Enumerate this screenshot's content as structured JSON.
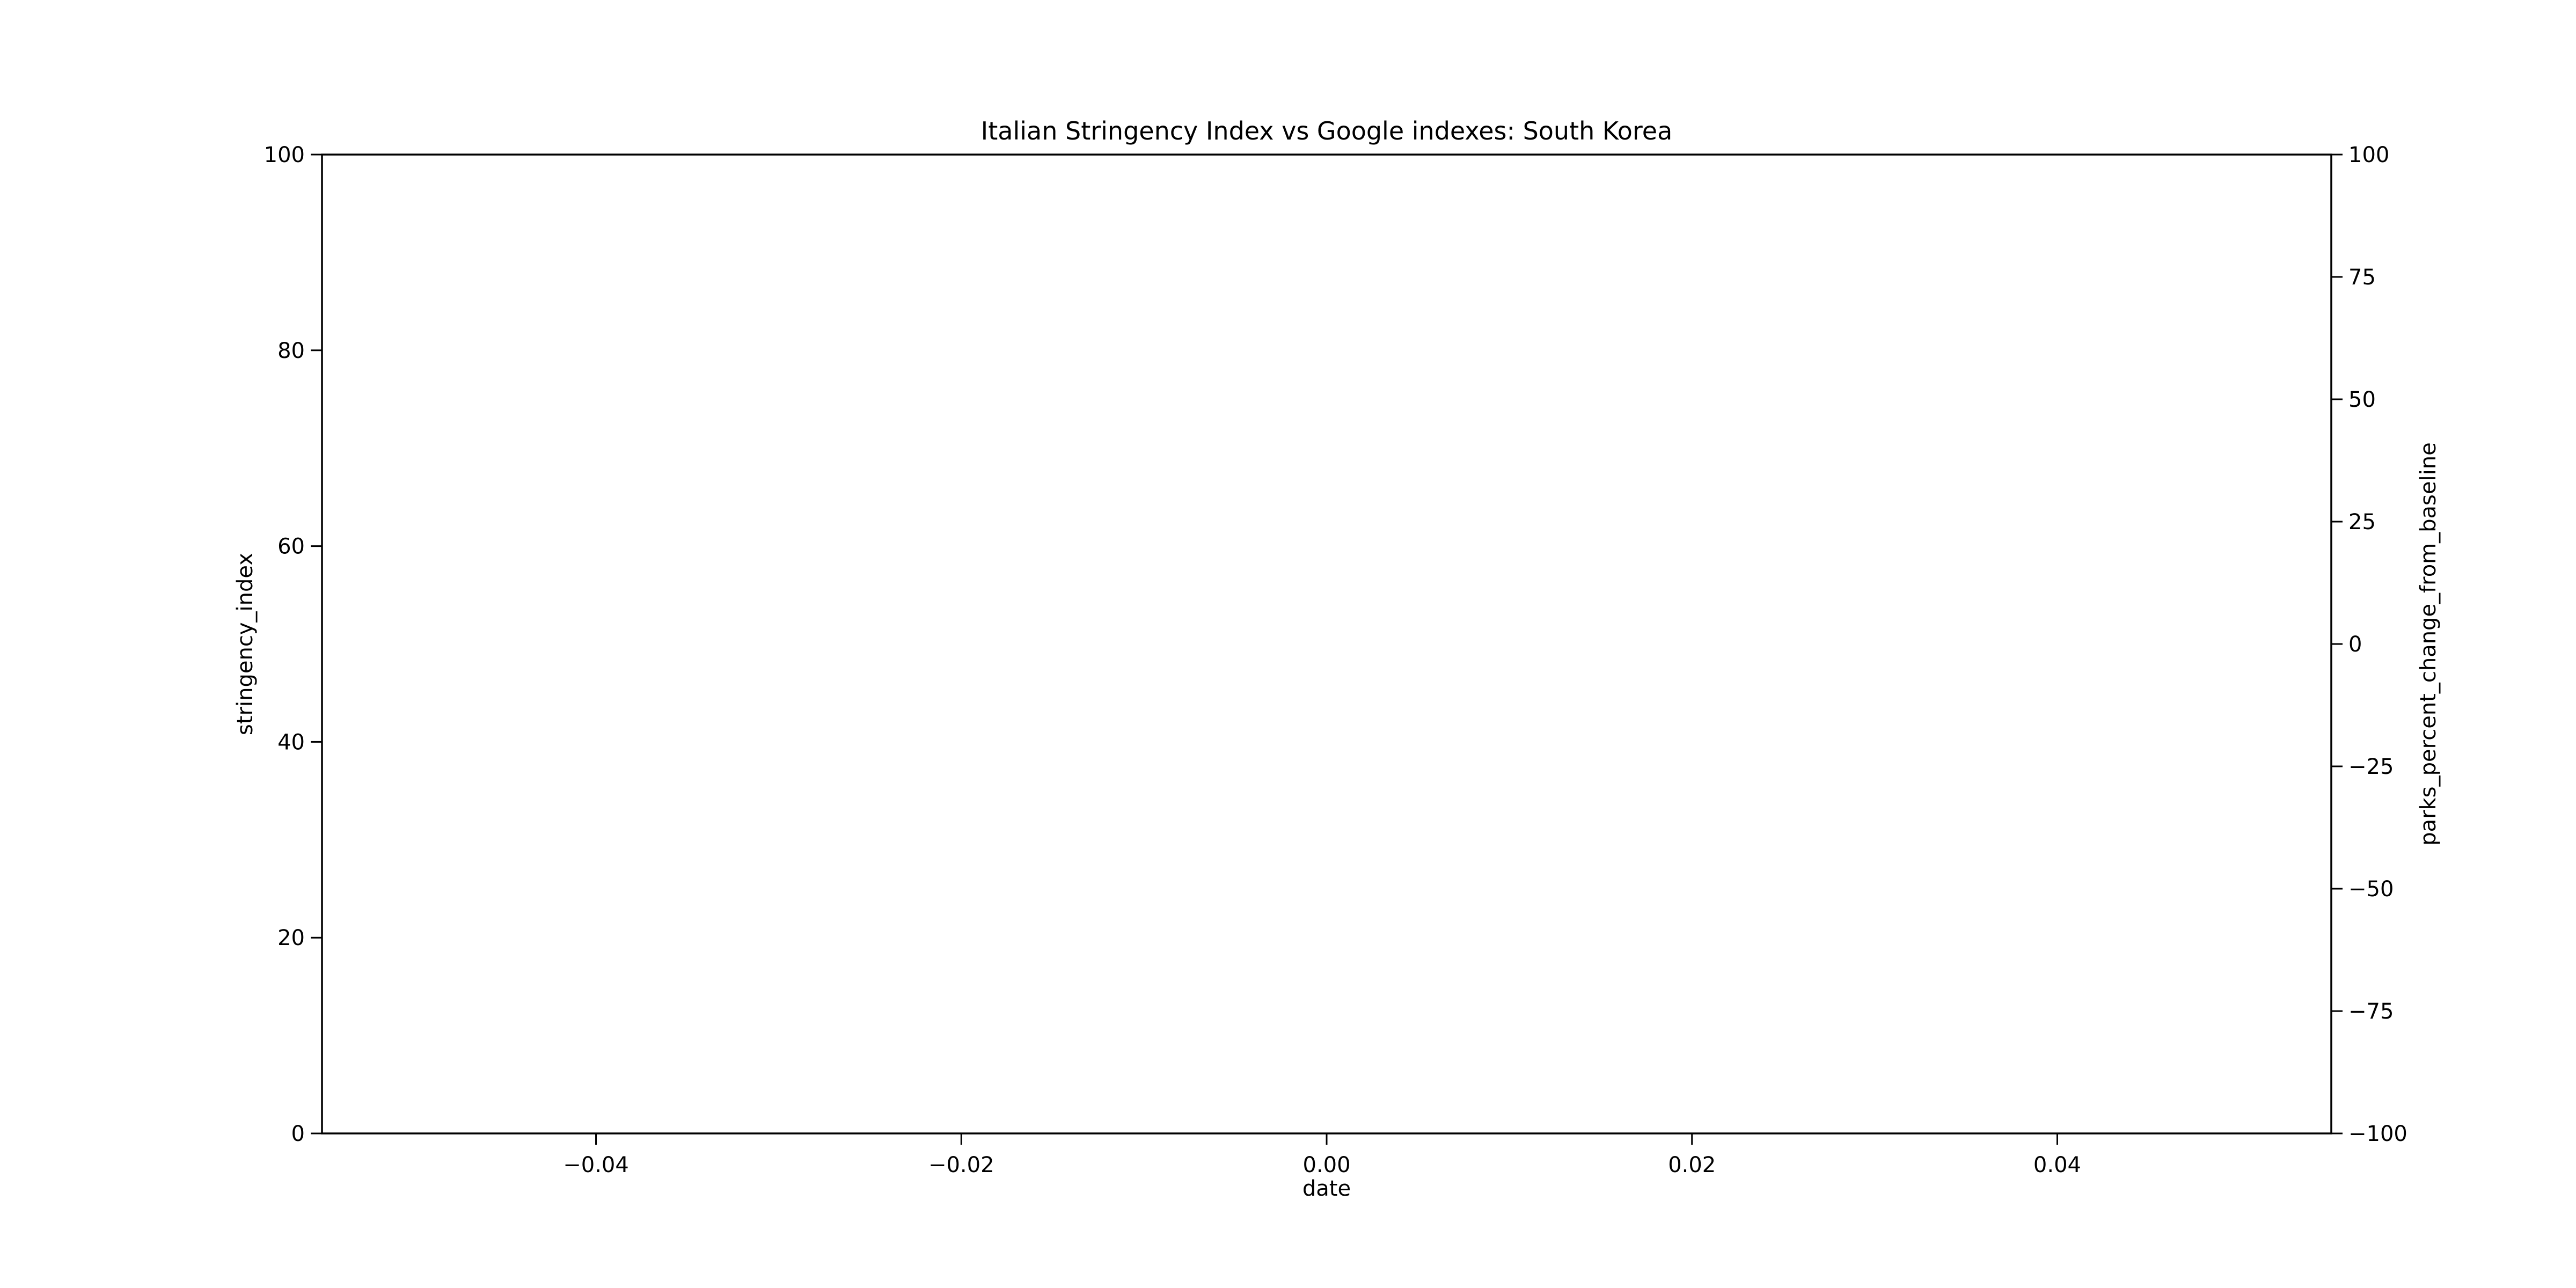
{
  "chart_data": {
    "type": "line",
    "title": "Italian Stringency Index vs Google indexes: South Korea",
    "xlabel": "date",
    "ylabel": "stringency_index",
    "ylabel_right": "parks_percent_change_from_baseline",
    "xlim": [
      -0.055,
      0.055
    ],
    "ylim": [
      0,
      100
    ],
    "ylim_right": [
      -100,
      100
    ],
    "x_ticks": [
      -0.04,
      -0.02,
      0.0,
      0.02,
      0.04
    ],
    "x_tick_labels": [
      "−0.04",
      "−0.02",
      "0.00",
      "0.02",
      "0.04"
    ],
    "y_ticks": [
      0,
      20,
      40,
      60,
      80,
      100
    ],
    "y_tick_labels": [
      "0",
      "20",
      "40",
      "60",
      "80",
      "100"
    ],
    "y_ticks_right": [
      -100,
      -75,
      -50,
      -25,
      0,
      25,
      50,
      75,
      100
    ],
    "y_tick_labels_right": [
      "−100",
      "−75",
      "−50",
      "−25",
      "0",
      "25",
      "50",
      "75",
      "100"
    ],
    "grid": false,
    "series": []
  }
}
